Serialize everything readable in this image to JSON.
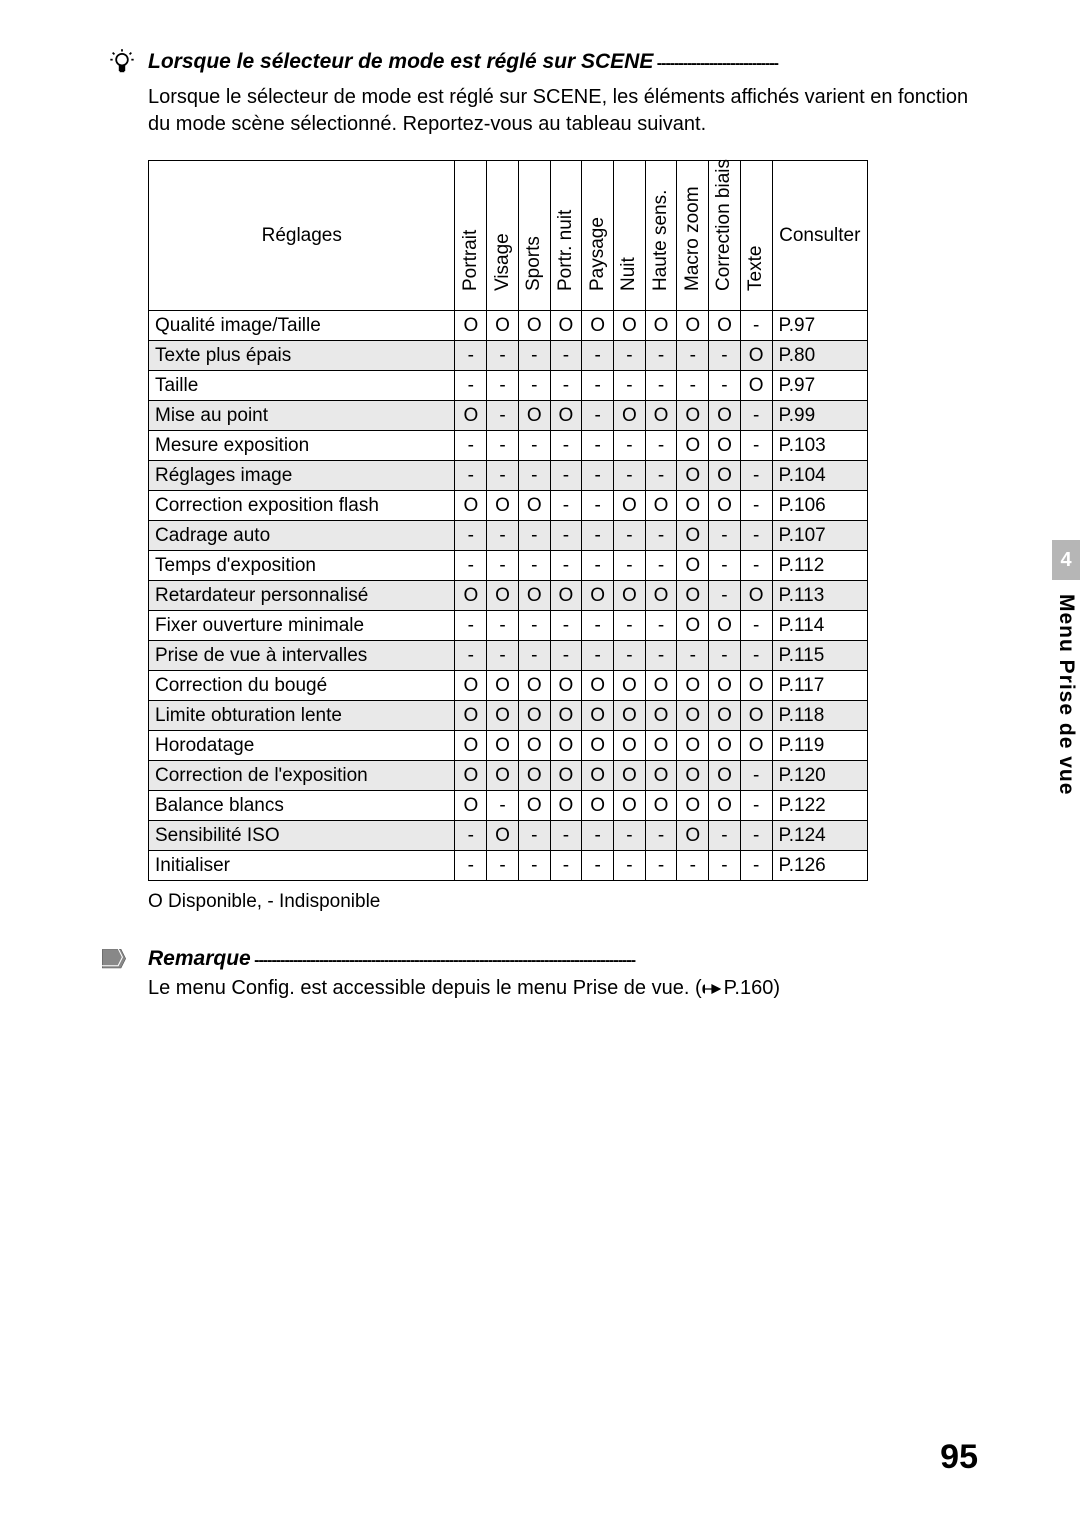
{
  "tip": {
    "title": "Lorsque le sélecteur de mode est réglé sur SCENE",
    "dashes": " ----------------------------",
    "intro": "Lorsque le sélecteur de mode est réglé sur SCENE, les éléments affichés varient en fonction du mode scène sélectionné. Reportez-vous au tableau suivant."
  },
  "table": {
    "settings_header": "Réglages",
    "consult_header": "Consulter",
    "columns": [
      "Portrait",
      "Visage",
      "Sports",
      "Portr. nuit",
      "Paysage",
      "Nuit",
      "Haute sens.",
      "Macro zoom",
      "Correction biais",
      "Texte"
    ],
    "mark_yes": "O",
    "mark_no": "-",
    "rows": [
      {
        "label": "Qualité image/Taille",
        "vals": [
          "O",
          "O",
          "O",
          "O",
          "O",
          "O",
          "O",
          "O",
          "O",
          "-"
        ],
        "page": "P.97",
        "shaded": false
      },
      {
        "label": "Texte plus épais",
        "vals": [
          "-",
          "-",
          "-",
          "-",
          "-",
          "-",
          "-",
          "-",
          "-",
          "O"
        ],
        "page": "P.80",
        "shaded": true
      },
      {
        "label": "Taille",
        "vals": [
          "-",
          "-",
          "-",
          "-",
          "-",
          "-",
          "-",
          "-",
          "-",
          "O"
        ],
        "page": "P.97",
        "shaded": false
      },
      {
        "label": "Mise au point",
        "vals": [
          "O",
          "-",
          "O",
          "O",
          "-",
          "O",
          "O",
          "O",
          "O",
          "-"
        ],
        "page": "P.99",
        "shaded": true
      },
      {
        "label": "Mesure exposition",
        "vals": [
          "-",
          "-",
          "-",
          "-",
          "-",
          "-",
          "-",
          "O",
          "O",
          "-"
        ],
        "page": "P.103",
        "shaded": false
      },
      {
        "label": "Réglages image",
        "vals": [
          "-",
          "-",
          "-",
          "-",
          "-",
          "-",
          "-",
          "O",
          "O",
          "-"
        ],
        "page": "P.104",
        "shaded": true
      },
      {
        "label": "Correction exposition flash",
        "vals": [
          "O",
          "O",
          "O",
          "-",
          "-",
          "O",
          "O",
          "O",
          "O",
          "-"
        ],
        "page": "P.106",
        "shaded": false
      },
      {
        "label": "Cadrage auto",
        "vals": [
          "-",
          "-",
          "-",
          "-",
          "-",
          "-",
          "-",
          "O",
          "-",
          "-"
        ],
        "page": "P.107",
        "shaded": true
      },
      {
        "label": "Temps d'exposition",
        "vals": [
          "-",
          "-",
          "-",
          "-",
          "-",
          "-",
          "-",
          "O",
          "-",
          "-"
        ],
        "page": "P.112",
        "shaded": false
      },
      {
        "label": "Retardateur personnalisé",
        "vals": [
          "O",
          "O",
          "O",
          "O",
          "O",
          "O",
          "O",
          "O",
          "-",
          "O"
        ],
        "page": "P.113",
        "shaded": true
      },
      {
        "label": "Fixer ouverture minimale",
        "vals": [
          "-",
          "-",
          "-",
          "-",
          "-",
          "-",
          "-",
          "O",
          "O",
          "-"
        ],
        "page": "P.114",
        "shaded": false
      },
      {
        "label": "Prise de vue à intervalles",
        "vals": [
          "-",
          "-",
          "-",
          "-",
          "-",
          "-",
          "-",
          "-",
          "-",
          "-"
        ],
        "page": "P.115",
        "shaded": true
      },
      {
        "label": "Correction du bougé",
        "vals": [
          "O",
          "O",
          "O",
          "O",
          "O",
          "O",
          "O",
          "O",
          "O",
          "O"
        ],
        "page": "P.117",
        "shaded": false
      },
      {
        "label": "Limite obturation lente",
        "vals": [
          "O",
          "O",
          "O",
          "O",
          "O",
          "O",
          "O",
          "O",
          "O",
          "O"
        ],
        "page": "P.118",
        "shaded": true
      },
      {
        "label": "Horodatage",
        "vals": [
          "O",
          "O",
          "O",
          "O",
          "O",
          "O",
          "O",
          "O",
          "O",
          "O"
        ],
        "page": "P.119",
        "shaded": false
      },
      {
        "label": "Correction de l'exposition",
        "vals": [
          "O",
          "O",
          "O",
          "O",
          "O",
          "O",
          "O",
          "O",
          "O",
          "-"
        ],
        "page": "P.120",
        "shaded": true
      },
      {
        "label": "Balance blancs",
        "vals": [
          "O",
          "-",
          "O",
          "O",
          "O",
          "O",
          "O",
          "O",
          "O",
          "-"
        ],
        "page": "P.122",
        "shaded": false
      },
      {
        "label": "Sensibilité ISO",
        "vals": [
          "-",
          "O",
          "-",
          "-",
          "-",
          "-",
          "-",
          "O",
          "-",
          "-"
        ],
        "page": "P.124",
        "shaded": true
      },
      {
        "label": "Initialiser",
        "vals": [
          "-",
          "-",
          "-",
          "-",
          "-",
          "-",
          "-",
          "-",
          "-",
          "-"
        ],
        "page": "P.126",
        "shaded": false
      }
    ]
  },
  "legend": "O Disponible, - Indisponible",
  "note": {
    "title": "Remarque",
    "dashes": " ----------------------------------------------------------------------------------------",
    "text_before": "Le menu Config. est accessible depuis le menu Prise de vue. (",
    "text_page": "P.160)",
    "pointer_alt": "pointer"
  },
  "side": {
    "number": "4",
    "label": "Menu Prise de vue"
  },
  "page_number": "95"
}
